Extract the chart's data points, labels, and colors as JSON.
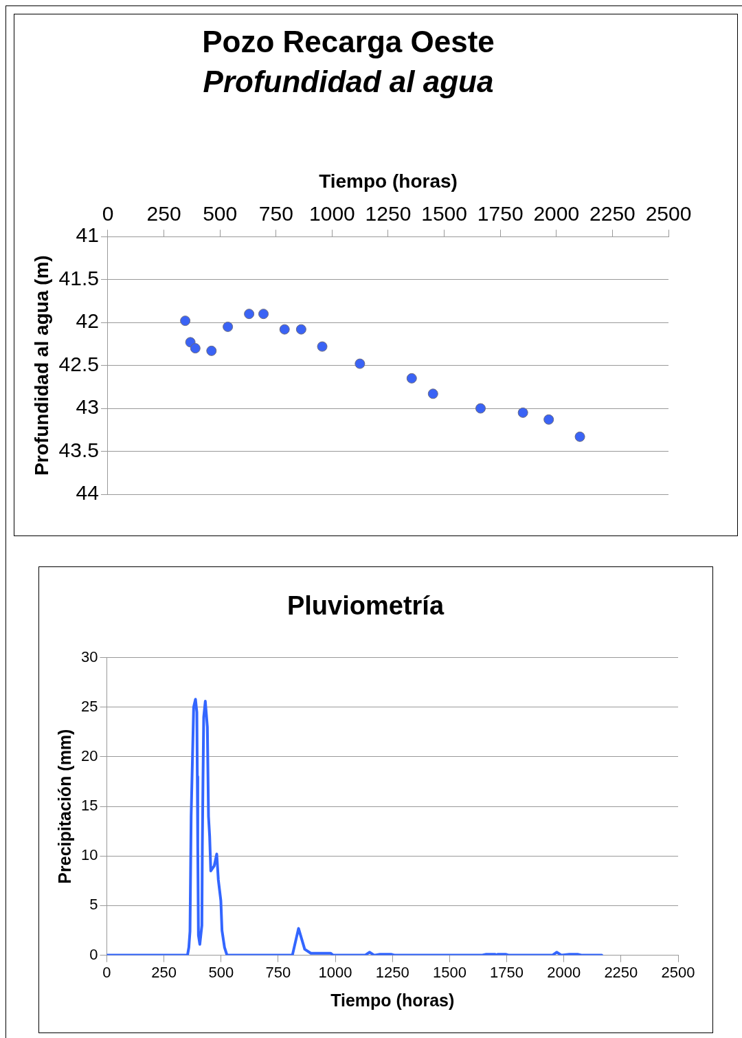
{
  "chart_data": [
    {
      "type": "scatter",
      "title": "Pozo Recarga Oeste",
      "subtitle": "Profundidad al agua",
      "xlabel": "Tiempo (horas)",
      "ylabel": "Profundidad al agua (m)",
      "color": "#3a63f5",
      "marker": "circle",
      "grid": "y",
      "legend": false,
      "x": [
        345,
        368,
        390,
        462,
        535,
        630,
        694,
        788,
        862,
        956,
        1124,
        1355,
        1450,
        1662,
        1851,
        1966,
        2105
      ],
      "values": [
        41.98,
        42.23,
        42.3,
        42.33,
        42.05,
        41.9,
        41.9,
        42.08,
        42.08,
        42.28,
        42.48,
        42.65,
        42.83,
        43.0,
        43.05,
        43.13,
        43.33
      ],
      "xlim": [
        0,
        2500
      ],
      "xticks": [
        0,
        250,
        500,
        750,
        1000,
        1250,
        1500,
        1750,
        2000,
        2250,
        2500
      ],
      "ylim": [
        44,
        41
      ],
      "yticks": [
        41,
        41.5,
        42,
        42.5,
        43,
        43.5,
        44
      ]
    },
    {
      "type": "line",
      "title": "Pluviometría",
      "xlabel": "Tiempo (horas)",
      "ylabel": "Precipitación (mm)",
      "color": "#3366ff",
      "marker": "none",
      "grid": "y",
      "legend": false,
      "x": [
        0,
        353,
        359,
        364,
        369,
        375,
        380,
        388,
        394,
        396,
        398,
        401,
        407,
        416,
        418,
        421,
        424,
        431,
        440,
        445,
        450,
        455,
        470,
        481,
        488,
        499,
        504,
        515,
        526,
        812,
        839,
        866,
        893,
        980,
        990,
        1130,
        1150,
        1170,
        1195,
        1244,
        1260,
        1640,
        1660,
        1700,
        1705,
        1710,
        1745,
        1760,
        1950,
        1969,
        1990,
        2024,
        2060,
        2080,
        2166
      ],
      "values": [
        0,
        0,
        0.8,
        2.4,
        14,
        20,
        25,
        25.8,
        24.5,
        18,
        11,
        2,
        1.1,
        3,
        11,
        18,
        24,
        25.6,
        23,
        14,
        12,
        8.5,
        9,
        10.2,
        7.6,
        5.5,
        2.5,
        0.8,
        0,
        0,
        2.7,
        0.6,
        0.2,
        0.2,
        0,
        0,
        0.3,
        0,
        0.1,
        0.1,
        0,
        0,
        0.1,
        0.1,
        0,
        0.1,
        0.1,
        0,
        0,
        0.3,
        0,
        0.1,
        0.1,
        0,
        0
      ],
      "xlim": [
        0,
        2500
      ],
      "xticks": [
        0,
        250,
        500,
        750,
        1000,
        1250,
        1500,
        1750,
        2000,
        2250,
        2500
      ],
      "ylim": [
        0,
        30
      ],
      "yticks": [
        0,
        5,
        10,
        15,
        20,
        25,
        30
      ]
    }
  ]
}
